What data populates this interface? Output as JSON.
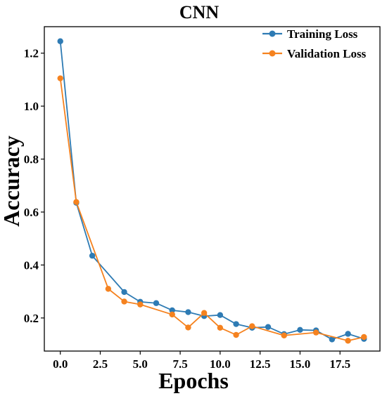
{
  "chart_data": {
    "type": "line",
    "title": "CNN",
    "xlabel": "Epochs",
    "ylabel": "Accuracy",
    "xlim": [
      -1.0,
      20.0
    ],
    "ylim": [
      0.075,
      1.3
    ],
    "xticks": [
      0.0,
      2.5,
      5.0,
      7.5,
      10.0,
      12.5,
      15.0,
      17.5
    ],
    "xtick_labels": [
      "0.0",
      "2.5",
      "5.0",
      "7.5",
      "10.0",
      "12.5",
      "15.0",
      "17.5"
    ],
    "yticks": [
      0.2,
      0.4,
      0.6,
      0.8,
      1.0,
      1.2
    ],
    "ytick_labels": [
      "0.2",
      "0.4",
      "0.6",
      "0.8",
      "1.0",
      "1.2"
    ],
    "grid": false,
    "legend_position": "top-right",
    "x": [
      0,
      1,
      2,
      3,
      4,
      5,
      6,
      7,
      8,
      9,
      10,
      11,
      12,
      13,
      14,
      15,
      16,
      17,
      18,
      19
    ],
    "series": [
      {
        "name": "Training Loss",
        "color": "#2e7bb4",
        "values": [
          1.245,
          0.635,
          0.435,
          null,
          0.298,
          0.261,
          0.256,
          0.229,
          0.222,
          0.207,
          0.211,
          0.177,
          0.163,
          0.166,
          0.139,
          0.155,
          0.153,
          0.119,
          0.14,
          0.121
        ]
      },
      {
        "name": "Validation Loss",
        "color": "#f5821f",
        "values": [
          1.105,
          0.638,
          null,
          0.31,
          0.262,
          0.251,
          null,
          0.213,
          0.164,
          0.219,
          0.163,
          0.136,
          0.169,
          null,
          0.134,
          null,
          0.145,
          null,
          0.114,
          0.128
        ]
      }
    ]
  }
}
